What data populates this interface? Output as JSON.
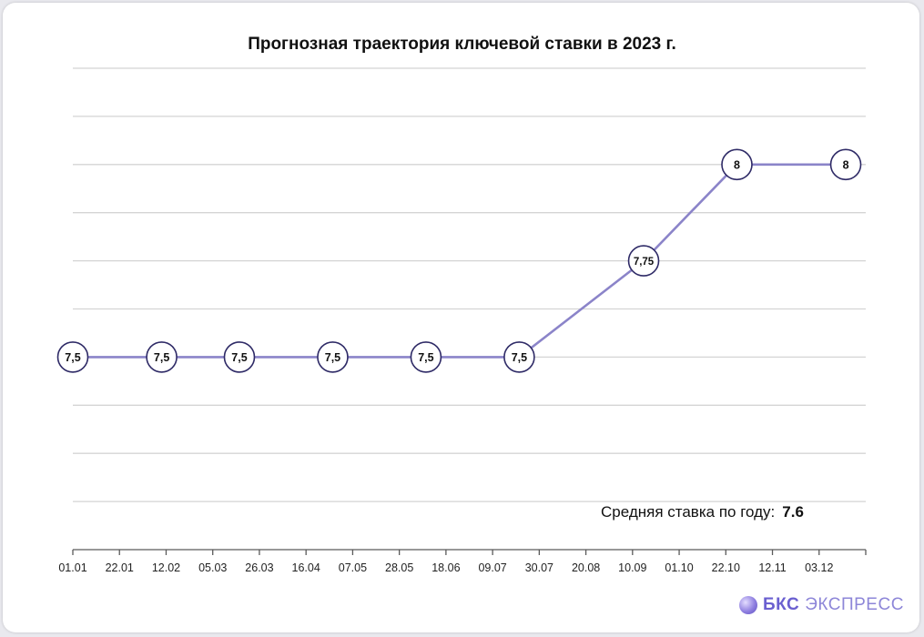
{
  "chart_data": {
    "type": "line",
    "title": "Прогнозная траектория ключевой ставки в 2023 г.",
    "x_tick_labels": [
      "01.01",
      "22.01",
      "12.02",
      "05.03",
      "26.03",
      "16.04",
      "07.05",
      "28.05",
      "18.06",
      "09.07",
      "30.07",
      "20.08",
      "10.09",
      "01.10",
      "22.10",
      "12.11",
      "03.12"
    ],
    "x_axis": {
      "start": "2023-01-01",
      "end": "2023-12-24"
    },
    "points": [
      {
        "date": "2023-01-01",
        "value": 7.5,
        "label": "7,5"
      },
      {
        "date": "2023-02-10",
        "value": 7.5,
        "label": "7,5"
      },
      {
        "date": "2023-03-17",
        "value": 7.5,
        "label": "7,5"
      },
      {
        "date": "2023-04-28",
        "value": 7.5,
        "label": "7,5"
      },
      {
        "date": "2023-06-09",
        "value": 7.5,
        "label": "7,5"
      },
      {
        "date": "2023-07-21",
        "value": 7.5,
        "label": "7,5"
      },
      {
        "date": "2023-09-15",
        "value": 7.75,
        "label": "7,75"
      },
      {
        "date": "2023-10-27",
        "value": 8,
        "label": "8"
      },
      {
        "date": "2023-12-15",
        "value": 8,
        "label": "8"
      }
    ],
    "ylim": [
      7.0,
      8.25
    ],
    "grid_step": 0.125,
    "grid": true,
    "colors": {
      "line": "#8b84c9",
      "marker_border": "#2e2a66",
      "grid": "#d4d4d4",
      "axis": "#5a5a5a"
    }
  },
  "average_label": "Средняя ставка по году:",
  "average_value": "7.6",
  "brand": {
    "name": "БКС",
    "suffix": "ЭКСПРЕСС"
  }
}
